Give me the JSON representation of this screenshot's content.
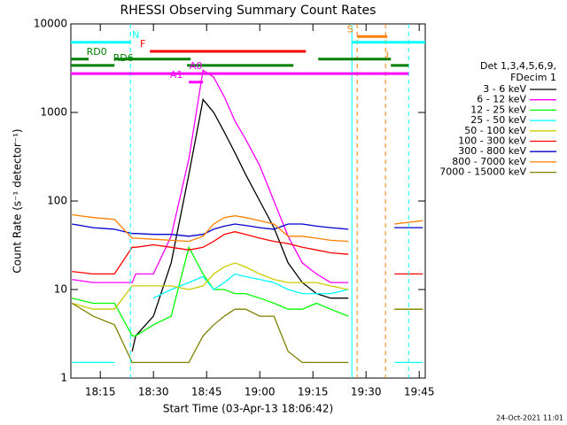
{
  "chart_data": {
    "type": "line",
    "title": "RHESSI Observing Summary Count Rates",
    "x_label": "Start Time (03-Apr-13 18:06:42)",
    "y_label": "Count Rate (s⁻¹ detector⁻¹)",
    "legend_header": [
      "Det 1,3,4,5,6,9,",
      "FDecim 1"
    ],
    "footer": "24-Oct-2021 11:01",
    "log_y": true,
    "xlim": [
      1086.7,
      1186.7
    ],
    "xticks": [
      {
        "value": 1095,
        "label": "18:15"
      },
      {
        "value": 1110,
        "label": "18:30"
      },
      {
        "value": 1125,
        "label": "18:45"
      },
      {
        "value": 1140,
        "label": "19:00"
      },
      {
        "value": 1155,
        "label": "19:15"
      },
      {
        "value": 1170,
        "label": "19:30"
      },
      {
        "value": 1185,
        "label": "19:45"
      }
    ],
    "ylim": [
      1,
      10000
    ],
    "yticks": [
      1,
      10,
      100,
      1000,
      10000
    ],
    "x": [
      1087,
      1093,
      1099,
      1104,
      1105,
      1110,
      1115,
      1120,
      1124,
      1127,
      1130,
      1133,
      1136,
      1140,
      1144,
      1148,
      1152,
      1156,
      1160,
      1165,
      1171,
      1178,
      1186
    ],
    "series": [
      {
        "name": "3 - 6 keV",
        "color": "#000000",
        "values": [
          null,
          null,
          null,
          2,
          3,
          5,
          20,
          200,
          1400,
          1000,
          600,
          350,
          200,
          100,
          50,
          20,
          12,
          9,
          8,
          8,
          null,
          null,
          null
        ]
      },
      {
        "name": "6 - 12 keV",
        "color": "#ff00ff",
        "values": [
          13,
          12,
          12,
          12,
          15,
          15,
          40,
          300,
          3000,
          2500,
          1500,
          800,
          500,
          250,
          100,
          40,
          20,
          15,
          12,
          12,
          null,
          null,
          null
        ]
      },
      {
        "name": "12 - 25 keV",
        "color": "#00ff00",
        "values": [
          8,
          7,
          7,
          3,
          3,
          4,
          5,
          30,
          15,
          10,
          10,
          9,
          9,
          8,
          7,
          6,
          6,
          7,
          6,
          5,
          null,
          null,
          null
        ]
      },
      {
        "name": "25 - 50 keV",
        "color": "#00ffff",
        "values": [
          1.5,
          1.5,
          1.5,
          null,
          null,
          8,
          10,
          12,
          14,
          10,
          12,
          15,
          14,
          13,
          12,
          10,
          9,
          9,
          9,
          10,
          null,
          1.5,
          1.5
        ]
      },
      {
        "name": "50 - 100 keV",
        "color": "#cccc00",
        "values": [
          7,
          6,
          6,
          11,
          11,
          11,
          11,
          10,
          11,
          15,
          18,
          20,
          18,
          15,
          13,
          12,
          12,
          12,
          11,
          10,
          null,
          6,
          6
        ]
      },
      {
        "name": "100 - 300 keV",
        "color": "#ff0000",
        "values": [
          16,
          15,
          15,
          30,
          30,
          32,
          30,
          28,
          30,
          35,
          42,
          45,
          42,
          38,
          35,
          33,
          30,
          28,
          26,
          25,
          null,
          15,
          15
        ]
      },
      {
        "name": "300 - 800 keV",
        "color": "#0000cc",
        "values": [
          55,
          50,
          48,
          43,
          43,
          42,
          42,
          40,
          42,
          48,
          52,
          55,
          53,
          50,
          48,
          55,
          55,
          52,
          50,
          48,
          null,
          50,
          50
        ]
      },
      {
        "name": "800 - 7000 keV",
        "color": "#ff7f00",
        "values": [
          70,
          65,
          62,
          38,
          38,
          37,
          36,
          35,
          40,
          55,
          65,
          68,
          65,
          60,
          55,
          40,
          40,
          38,
          36,
          35,
          null,
          55,
          60
        ]
      },
      {
        "name": "7000 - 15000 keV",
        "color": "#808000",
        "values": [
          7,
          5,
          4,
          1.5,
          1.5,
          1.5,
          1.5,
          1.5,
          3,
          4,
          5,
          6,
          6,
          5,
          5,
          2,
          1.5,
          1.5,
          1.5,
          1.5,
          null,
          6,
          6
        ]
      }
    ],
    "flags": [
      {
        "label": "N",
        "color": "#00ffff",
        "level": 6200,
        "label_at": 1105,
        "segments": [
          [
            1086.7,
            1103.5
          ],
          [
            1166,
            1186.7
          ]
        ]
      },
      {
        "label": "F",
        "color": "#ff0000",
        "level": 4900,
        "label_at": 1107,
        "segments": [
          [
            1109,
            1153
          ]
        ]
      },
      {
        "label": "S",
        "color": "#ff7f00",
        "level": 7200,
        "label_at": 1165.5,
        "segments": [
          [
            1167.5,
            1176
          ]
        ]
      },
      {
        "label": "RD0",
        "color": "#008000",
        "level": 4000,
        "label_at": 1094,
        "segments": [
          [
            1086.7,
            1091.7
          ],
          [
            1099,
            1120.5
          ],
          [
            1156.5,
            1177
          ]
        ]
      },
      {
        "label": "RD6",
        "color": "#008000",
        "level": 3400,
        "label_at": 1101.5,
        "segments": [
          [
            1086.7,
            1099
          ],
          [
            1119.5,
            1149.5
          ],
          [
            1177,
            1182
          ]
        ]
      },
      {
        "label": "A0",
        "color": "#ff00ff",
        "level": 2750,
        "label_at": 1122,
        "segments": [
          [
            1086.7,
            1182
          ]
        ]
      },
      {
        "label": "A1",
        "color": "#ff00ff",
        "level": 2200,
        "label_at": 1116.5,
        "segments": [
          [
            1120,
            1124
          ]
        ]
      },
      {
        "label": "I",
        "color": "#ff7f00",
        "level": 3600,
        "label_at": 1176,
        "segments": []
      }
    ],
    "vlines": [
      {
        "x": 1103.5,
        "color": "#00ffff",
        "dashed": true
      },
      {
        "x": 1166,
        "color": "#00ffff",
        "dashed": false
      },
      {
        "x": 1167.5,
        "color": "#ff7f00",
        "dashed": true
      },
      {
        "x": 1175.5,
        "color": "#ff7f00",
        "dashed": true
      },
      {
        "x": 1182,
        "color": "#00ffff",
        "dashed": true
      }
    ]
  }
}
